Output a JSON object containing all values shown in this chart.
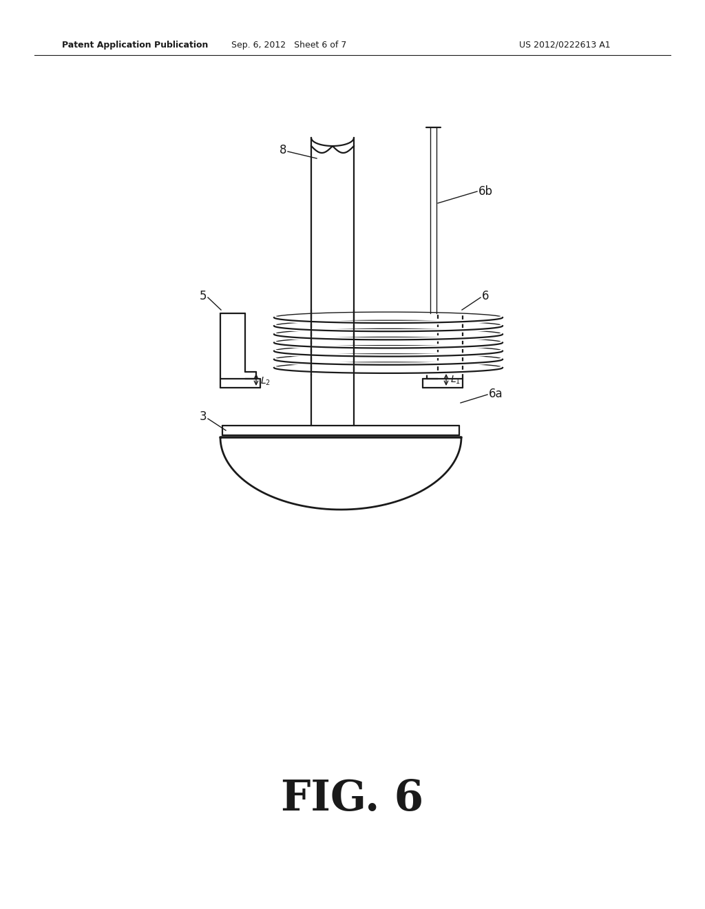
{
  "bg_color": "#ffffff",
  "lc": "#1a1a1a",
  "fig_label": "FIG. 6",
  "header_left": "Patent Application Publication",
  "header_mid": "Sep. 6, 2012   Sheet 6 of 7",
  "header_right": "US 2012/0222613 A1",
  "lw": 1.6,
  "lw_thin": 1.0,
  "label_fs": 12,
  "header_fs": 9,
  "fig_fs": 44
}
